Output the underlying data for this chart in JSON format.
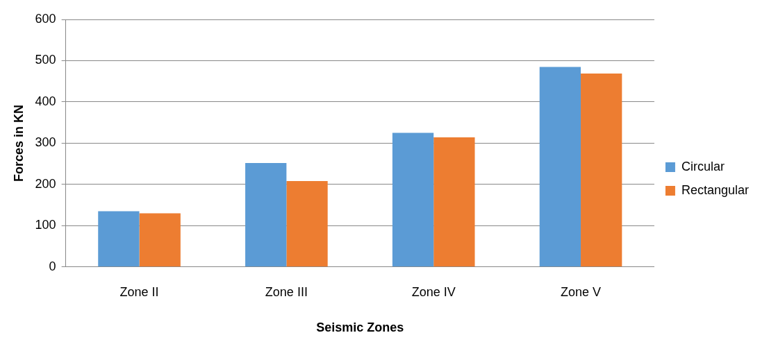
{
  "chart_data": {
    "type": "bar",
    "xlabel": "Seismic Zones",
    "ylabel": "Forces in KN",
    "categories": [
      "Zone II",
      "Zone III",
      "Zone IV",
      "Zone V"
    ],
    "series": [
      {
        "name": "Circular",
        "color": "#5b9bd5",
        "values": [
          135,
          252,
          325,
          485
        ]
      },
      {
        "name": "Rectangular",
        "color": "#ed7d31",
        "values": [
          130,
          208,
          314,
          469
        ]
      }
    ],
    "ylim": [
      0,
      600
    ],
    "yticks": [
      0,
      100,
      200,
      300,
      400,
      500,
      600
    ],
    "grid": "y",
    "legend": "right"
  }
}
